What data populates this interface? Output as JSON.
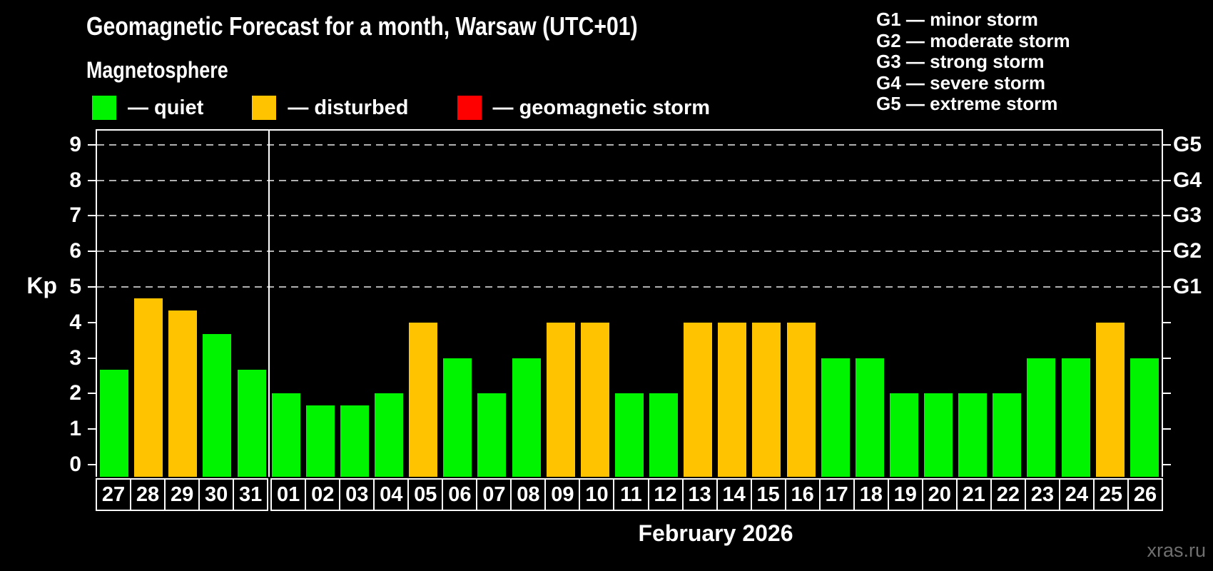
{
  "title": "Geomagnetic Forecast for a month, Warsaw (UTC+01)",
  "subtitle": "Magnetosphere",
  "legend": [
    {
      "key": "quiet",
      "label": "— quiet",
      "color": "#00f400"
    },
    {
      "key": "disturbed",
      "label": "— disturbed",
      "color": "#ffc300"
    },
    {
      "key": "storm",
      "label": "— geomagnetic storm",
      "color": "#ff0000"
    }
  ],
  "g_legend": [
    "G1 — minor storm",
    "G2 — moderate storm",
    "G3 — strong storm",
    "G4 — severe storm",
    "G5 — extreme storm"
  ],
  "y_axis": {
    "label": "Kp",
    "ticks": [
      0,
      1,
      2,
      3,
      4,
      5,
      6,
      7,
      8,
      9
    ]
  },
  "right_axis_labels": [
    {
      "kp": 5,
      "label": "G1"
    },
    {
      "kp": 6,
      "label": "G2"
    },
    {
      "kp": 7,
      "label": "G3"
    },
    {
      "kp": 8,
      "label": "G4"
    },
    {
      "kp": 9,
      "label": "G5"
    }
  ],
  "x_axis_label": "February 2026",
  "watermark": "xras.ru",
  "chart_data": {
    "type": "bar",
    "title": "Geomagnetic Forecast for a month, Warsaw (UTC+01)",
    "ylabel": "Kp",
    "xlabel": "February 2026",
    "ylim": [
      0,
      9.4
    ],
    "gridlines_at": [
      5,
      6,
      7,
      8,
      9
    ],
    "legend_position": "top",
    "month_separator_after_index": 4,
    "categories": [
      "27",
      "28",
      "29",
      "30",
      "31",
      "01",
      "02",
      "03",
      "04",
      "05",
      "06",
      "07",
      "08",
      "09",
      "10",
      "11",
      "12",
      "13",
      "14",
      "15",
      "16",
      "17",
      "18",
      "19",
      "20",
      "21",
      "22",
      "23",
      "24",
      "25",
      "26"
    ],
    "values": [
      2.67,
      4.67,
      4.33,
      3.67,
      2.67,
      2,
      1.67,
      1.67,
      2,
      4,
      3,
      2,
      3,
      4,
      4,
      2,
      2,
      4,
      4,
      4,
      4,
      3,
      3,
      2,
      2,
      2,
      2,
      3,
      3,
      4,
      3
    ],
    "levels": [
      "quiet",
      "disturbed",
      "disturbed",
      "quiet",
      "quiet",
      "quiet",
      "quiet",
      "quiet",
      "quiet",
      "disturbed",
      "quiet",
      "quiet",
      "quiet",
      "disturbed",
      "disturbed",
      "quiet",
      "quiet",
      "disturbed",
      "disturbed",
      "disturbed",
      "disturbed",
      "quiet",
      "quiet",
      "quiet",
      "quiet",
      "quiet",
      "quiet",
      "quiet",
      "quiet",
      "disturbed",
      "quiet"
    ]
  }
}
